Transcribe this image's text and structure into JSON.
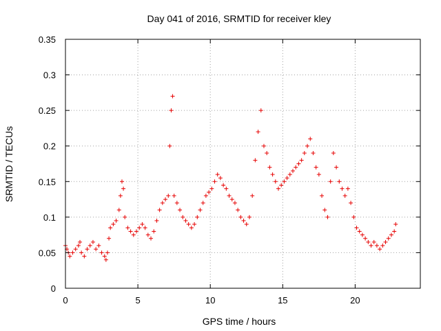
{
  "chart_data": {
    "type": "scatter",
    "title": "Day 041 of 2016, SRMTID for receiver kley",
    "xlabel": "GPS time / hours",
    "ylabel": "SRMTID / TECUs",
    "xlim": [
      0,
      24.5
    ],
    "ylim": [
      0,
      0.35
    ],
    "xticks": [
      0,
      5,
      10,
      15,
      20
    ],
    "xtick_labels": [
      "0",
      "5",
      "10",
      "15",
      "20"
    ],
    "yticks": [
      0,
      0.05,
      0.1,
      0.15,
      0.2,
      0.25,
      0.3,
      0.35
    ],
    "ytick_labels": [
      "0",
      "0.05",
      "0.1",
      "0.15",
      "0.2",
      "0.25",
      "0.3",
      "0.35"
    ],
    "grid": true,
    "marker": "+",
    "color": "#e60000",
    "series": [
      {
        "name": "kley",
        "x": [
          0.0,
          0.1,
          0.2,
          0.3,
          0.5,
          0.7,
          0.9,
          1.0,
          1.1,
          1.3,
          1.5,
          1.7,
          1.9,
          2.1,
          2.3,
          2.5,
          2.7,
          2.8,
          2.9,
          3.0,
          3.1,
          3.3,
          3.5,
          3.7,
          3.8,
          3.9,
          4.0,
          4.1,
          4.3,
          4.5,
          4.7,
          4.9,
          5.1,
          5.3,
          5.5,
          5.7,
          5.9,
          6.1,
          6.3,
          6.5,
          6.7,
          6.9,
          7.1,
          7.2,
          7.3,
          7.4,
          7.5,
          7.7,
          7.9,
          8.1,
          8.3,
          8.5,
          8.7,
          8.9,
          9.1,
          9.3,
          9.5,
          9.7,
          9.9,
          10.1,
          10.3,
          10.5,
          10.7,
          10.9,
          11.1,
          11.3,
          11.5,
          11.7,
          11.9,
          12.1,
          12.3,
          12.5,
          12.7,
          12.9,
          13.1,
          13.3,
          13.5,
          13.7,
          13.9,
          14.1,
          14.3,
          14.5,
          14.7,
          14.9,
          15.1,
          15.3,
          15.5,
          15.7,
          15.9,
          16.1,
          16.3,
          16.5,
          16.7,
          16.9,
          17.1,
          17.3,
          17.5,
          17.7,
          17.9,
          18.1,
          18.3,
          18.5,
          18.7,
          18.9,
          19.1,
          19.3,
          19.5,
          19.7,
          19.9,
          20.1,
          20.3,
          20.5,
          20.7,
          20.9,
          21.1,
          21.3,
          21.5,
          21.7,
          21.9,
          22.1,
          22.3,
          22.5,
          22.7,
          22.8
        ],
        "y": [
          0.06,
          0.055,
          0.05,
          0.045,
          0.05,
          0.055,
          0.06,
          0.065,
          0.05,
          0.045,
          0.055,
          0.06,
          0.065,
          0.055,
          0.06,
          0.05,
          0.045,
          0.04,
          0.05,
          0.07,
          0.085,
          0.09,
          0.095,
          0.11,
          0.13,
          0.15,
          0.14,
          0.1,
          0.085,
          0.08,
          0.075,
          0.08,
          0.085,
          0.09,
          0.085,
          0.075,
          0.07,
          0.08,
          0.095,
          0.11,
          0.12,
          0.125,
          0.13,
          0.2,
          0.25,
          0.27,
          0.13,
          0.12,
          0.11,
          0.1,
          0.095,
          0.09,
          0.085,
          0.09,
          0.1,
          0.11,
          0.12,
          0.13,
          0.135,
          0.14,
          0.15,
          0.16,
          0.155,
          0.145,
          0.14,
          0.13,
          0.125,
          0.12,
          0.11,
          0.1,
          0.095,
          0.09,
          0.1,
          0.13,
          0.18,
          0.22,
          0.25,
          0.2,
          0.19,
          0.17,
          0.16,
          0.15,
          0.14,
          0.145,
          0.15,
          0.155,
          0.16,
          0.165,
          0.17,
          0.175,
          0.18,
          0.19,
          0.2,
          0.21,
          0.19,
          0.17,
          0.16,
          0.13,
          0.11,
          0.1,
          0.15,
          0.19,
          0.17,
          0.15,
          0.14,
          0.13,
          0.14,
          0.12,
          0.1,
          0.085,
          0.08,
          0.075,
          0.07,
          0.065,
          0.06,
          0.065,
          0.06,
          0.055,
          0.06,
          0.065,
          0.07,
          0.075,
          0.08,
          0.09
        ]
      }
    ]
  }
}
